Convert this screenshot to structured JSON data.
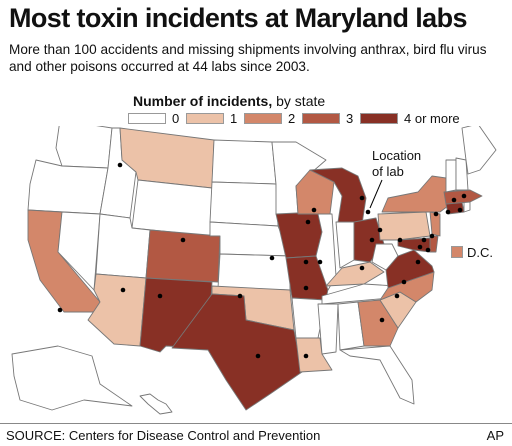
{
  "title": "Most toxin incidents at Maryland labs",
  "subtitle": "More than 100 accidents and missing shipments involving anthrax, bird flu virus and other poisons occurred at 44 labs since 2003.",
  "legend": {
    "title_bold": "Number of incidents,",
    "title_rest": " by state",
    "items": [
      {
        "label": "0",
        "color": "#ffffff"
      },
      {
        "label": "1",
        "color": "#ecc2a8"
      },
      {
        "label": "2",
        "color": "#d3876a"
      },
      {
        "label": "3",
        "color": "#b25843"
      },
      {
        "label": "4 or more",
        "color": "#883025"
      }
    ]
  },
  "location_label": "Location\nof lab",
  "dc_label": "D.C.",
  "dc_color": "#d3876a",
  "source": "SOURCE: Centers for Disease Control and Prevention",
  "credit": "AP",
  "state_incidents": {
    "MT": 1,
    "CO": 3,
    "NM": 4,
    "TX": 4,
    "AZ": 1,
    "CA": 2,
    "OK": 1,
    "IA": 4,
    "MO": 4,
    "WI": 2,
    "MI": 4,
    "OH": 4,
    "KY": 1,
    "LA": 1,
    "GA": 2,
    "SC": 1,
    "NC": 2,
    "VA": 4,
    "MD": 4,
    "PA": 1,
    "NY": 2,
    "CT": 4,
    "MA": 3,
    "DE": 3,
    "NJ": 2
  }
}
